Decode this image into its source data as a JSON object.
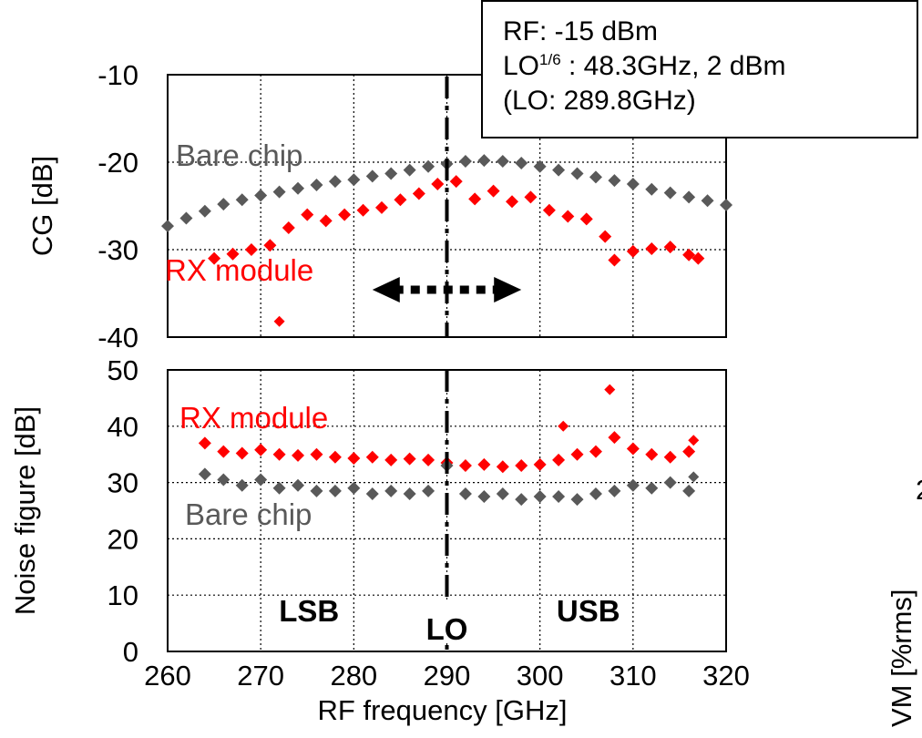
{
  "info_box": {
    "line1": "RF: -15 dBm",
    "line2_prefix": "LO",
    "line2_sup": "1/6",
    "line2_suffix": " : 48.3GHz, 2 dBm",
    "line3": "(LO: 289.8GHz)"
  },
  "colors": {
    "rx_module": "#ff0000",
    "bare_chip": "#595959",
    "lo_line": "#000000"
  },
  "chart_data": [
    {
      "type": "scatter",
      "panel": "top",
      "ylabel": "CG [dB]",
      "xlim": [
        260,
        320
      ],
      "ylim": [
        -40,
        -10
      ],
      "yticks": [
        -10,
        -20,
        -30,
        -40
      ],
      "grid": true,
      "lo_line_x": 290,
      "arrow_label_range": [
        282,
        298
      ],
      "series": [
        {
          "name": "Bare chip",
          "color": "#595959",
          "marker": "diamond",
          "x": [
            260,
            262,
            264,
            266,
            268,
            270,
            272,
            274,
            276,
            278,
            280,
            282,
            284,
            286,
            288,
            290,
            292,
            294,
            296,
            298,
            300,
            302,
            304,
            306,
            308,
            310,
            312,
            314,
            316,
            318,
            320
          ],
          "y": [
            -27.3,
            -26.4,
            -25.6,
            -24.8,
            -24.3,
            -23.8,
            -23.4,
            -23.0,
            -22.6,
            -22.2,
            -22.0,
            -21.6,
            -21.3,
            -20.9,
            -20.5,
            -20.2,
            -19.9,
            -19.8,
            -19.9,
            -20.1,
            -20.5,
            -20.9,
            -21.3,
            -21.7,
            -22.1,
            -22.5,
            -23.1,
            -23.5,
            -24.0,
            -24.4,
            -24.9
          ]
        },
        {
          "name": "RX module",
          "color": "#ff0000",
          "marker": "diamond",
          "x": [
            265,
            267,
            269,
            271,
            273,
            275,
            277,
            279,
            281,
            283,
            285,
            287,
            289,
            291,
            293,
            295,
            297,
            299,
            301,
            303,
            305,
            307,
            308,
            310,
            312,
            314,
            316,
            317
          ],
          "y": [
            -31.0,
            -30.5,
            -30.0,
            -29.5,
            -27.5,
            -26.0,
            -26.7,
            -26.0,
            -25.5,
            -25.2,
            -24.3,
            -23.6,
            -22.5,
            -22.2,
            -24.2,
            -23.3,
            -24.5,
            -24.0,
            -25.5,
            -26.2,
            -26.5,
            -28.5,
            -31.2,
            -30.2,
            -29.9,
            -29.7,
            -30.6,
            -31.0
          ]
        }
      ],
      "outliers": [
        {
          "series": "RX module",
          "x": 272,
          "y": -38.2
        }
      ],
      "annotations": [
        {
          "text": "Bare chip",
          "series": "Bare chip"
        },
        {
          "text": "RX module",
          "series": "RX module"
        }
      ]
    },
    {
      "type": "scatter",
      "panel": "bottom",
      "xlabel": "RF frequency [GHz]",
      "ylabel": "Noise figure [dB]",
      "xlim": [
        260,
        320
      ],
      "ylim": [
        0,
        50
      ],
      "xticks": [
        260,
        270,
        280,
        290,
        300,
        310,
        320
      ],
      "yticks": [
        0,
        10,
        20,
        30,
        40,
        50
      ],
      "grid": true,
      "lo_line_x": 290,
      "series": [
        {
          "name": "RX module",
          "color": "#ff0000",
          "marker": "diamond",
          "x": [
            264,
            266,
            268,
            270,
            272,
            274,
            276,
            278,
            280,
            282,
            284,
            286,
            288,
            290,
            292,
            294,
            296,
            298,
            300,
            302,
            304,
            306,
            308,
            310,
            312,
            314,
            316
          ],
          "y": [
            37.0,
            35.5,
            35.2,
            35.8,
            35.0,
            34.8,
            35.0,
            34.5,
            34.3,
            34.5,
            34.0,
            34.2,
            34.0,
            33.5,
            33.0,
            33.2,
            32.8,
            33.0,
            33.2,
            34.0,
            35.0,
            35.5,
            38.0,
            36.0,
            35.0,
            34.5,
            35.5
          ]
        },
        {
          "name": "Bare chip",
          "color": "#595959",
          "marker": "diamond",
          "x": [
            264,
            266,
            268,
            270,
            272,
            274,
            276,
            278,
            280,
            282,
            284,
            286,
            288,
            290,
            292,
            294,
            296,
            298,
            300,
            302,
            304,
            306,
            308,
            310,
            312,
            314,
            316
          ],
          "y": [
            31.5,
            30.5,
            29.5,
            30.5,
            29.0,
            29.5,
            28.5,
            28.5,
            29.0,
            28.0,
            28.5,
            28.0,
            28.5,
            33.0,
            28.0,
            27.5,
            28.0,
            27.0,
            27.5,
            27.5,
            27.0,
            28.0,
            28.5,
            29.5,
            29.0,
            30.0,
            28.5
          ]
        }
      ],
      "outliers": [
        {
          "series": "RX module",
          "x": 302.5,
          "y": 40.0
        },
        {
          "series": "RX module",
          "x": 307.5,
          "y": 46.5
        },
        {
          "series": "RX module",
          "x": 316.5,
          "y": 37.5
        },
        {
          "series": "Bare chip",
          "x": 316.5,
          "y": 31.0
        }
      ],
      "annotations": [
        {
          "text": "RX module",
          "series": "RX module"
        },
        {
          "text": "Bare chip",
          "series": "Bare chip"
        }
      ],
      "band_labels": [
        {
          "text": "LSB",
          "x": 275,
          "y": 7
        },
        {
          "text": "LO",
          "x": 290,
          "y": 5
        },
        {
          "text": "USB",
          "x": 305,
          "y": 7
        }
      ]
    }
  ],
  "right_clip": {
    "ylabel_fragment": "VM [%rms]",
    "tick_fragment": "2"
  }
}
